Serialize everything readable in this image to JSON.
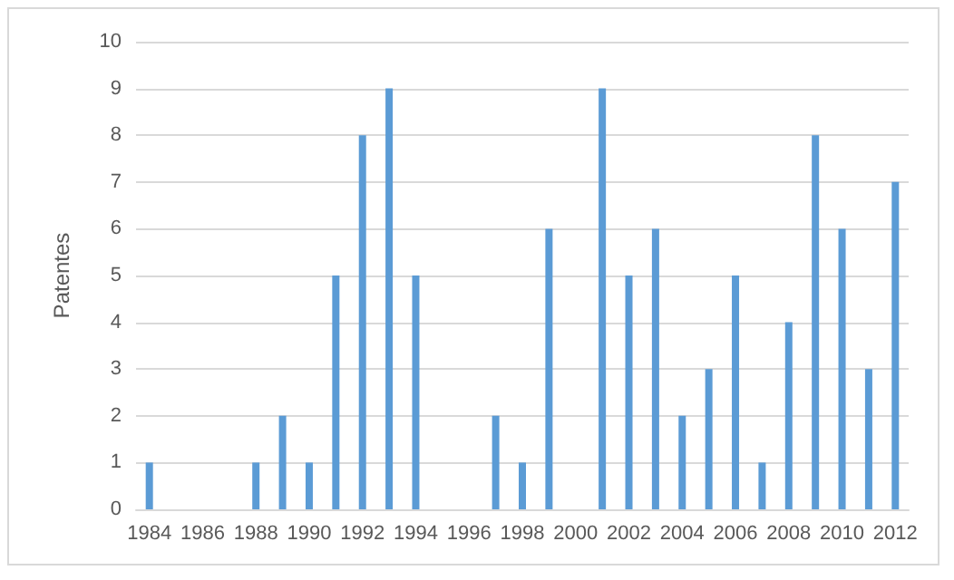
{
  "chart_data": {
    "type": "bar",
    "ylabel": "Patentes",
    "categories": [
      "1984",
      null,
      "1986",
      null,
      "1988",
      null,
      "1990",
      null,
      "1992",
      null,
      "1994",
      null,
      "1996",
      null,
      "1998",
      null,
      "2000",
      null,
      "2002",
      null,
      "2004",
      null,
      "2006",
      null,
      "2008",
      null,
      "2010",
      null,
      "2012"
    ],
    "values": [
      1,
      0,
      0,
      0,
      1,
      2,
      1,
      5,
      8,
      9,
      5,
      0,
      0,
      2,
      1,
      6,
      0,
      9,
      5,
      6,
      2,
      3,
      5,
      1,
      4,
      8,
      6,
      3,
      7
    ],
    "color": "#5b9bd5",
    "ylim": [
      0,
      10
    ],
    "yticks": [
      0,
      1,
      2,
      3,
      4,
      5,
      6,
      7,
      8,
      9,
      10
    ],
    "grid": "y"
  }
}
